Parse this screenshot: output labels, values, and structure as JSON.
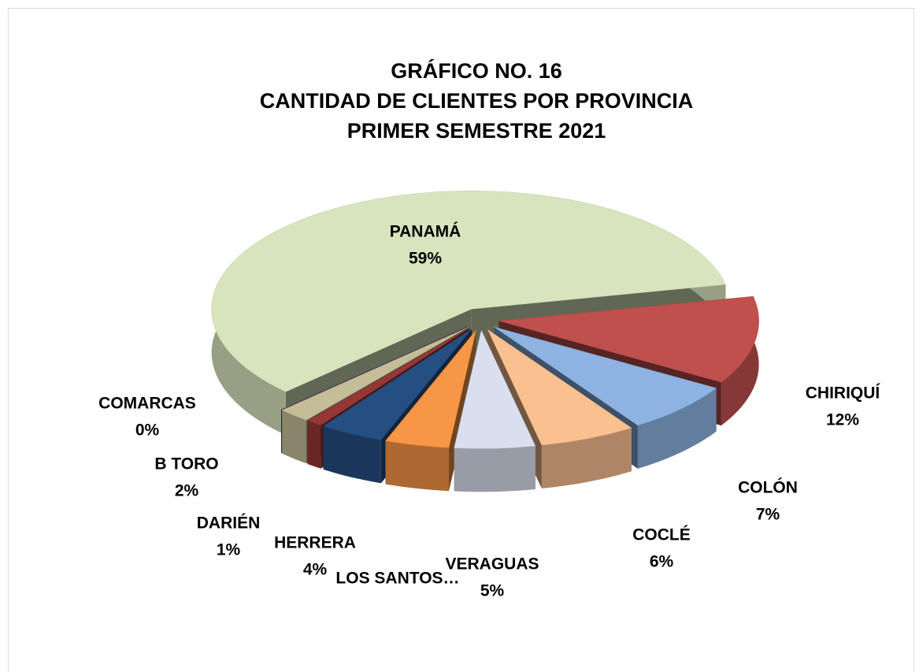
{
  "chart_data": {
    "type": "pie3d",
    "title": [
      "GRÁFICO  NO.  16",
      "CANTIDAD  DE  CLIENTES  POR  PROVINCIA",
      "PRIMER  SEMESTRE  2021"
    ],
    "categories": [
      "PANAMÁ",
      "CHIRIQUÍ",
      "COLÓN",
      "COCLÉ",
      "VERAGUAS",
      "LOS SANTOS…",
      "HERRERA",
      "DARIÉN",
      "B TORO",
      "COMARCAS"
    ],
    "values": [
      59,
      12,
      7,
      6,
      5,
      4,
      4,
      1,
      2,
      0
    ],
    "value_labels": [
      "59%",
      "12%",
      "7%",
      "6%",
      "5%",
      null,
      "4%",
      "1%",
      "2%",
      "0%"
    ],
    "colors": [
      "#d7e4bd",
      "#c0504d",
      "#8db3e2",
      "#fac090",
      "#d9dfef",
      "#f79646",
      "#254f82",
      "#953735",
      "#c4bd97",
      "#5f497a"
    ]
  }
}
